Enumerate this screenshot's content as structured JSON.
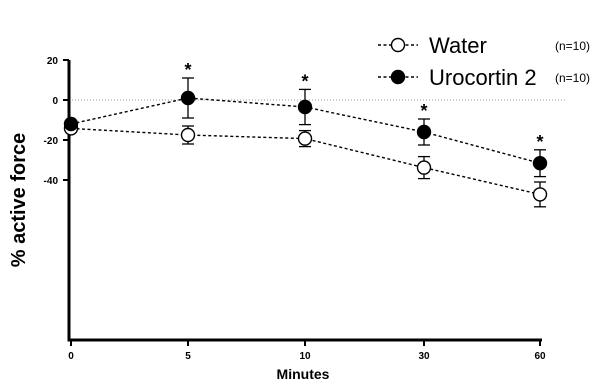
{
  "chart_data": {
    "type": "line",
    "title": "",
    "xlabel": "Minutes",
    "ylabel": "% active force",
    "categories": [
      "0",
      "5",
      "10",
      "30",
      "60"
    ],
    "ylim": [
      -50,
      20
    ],
    "yticks": [
      20,
      0,
      -20,
      -40
    ],
    "ytick_labels": [
      "20",
      "0",
      "-20",
      "-40"
    ],
    "zero_reference_line": true,
    "grid": false,
    "legend_position": "top-right",
    "series": [
      {
        "name": "Water",
        "n_label": "(n=10)",
        "marker": "open-circle",
        "line_style": "dashed",
        "color": "#000000",
        "values": [
          -14.2,
          -17.5,
          -19.3,
          -33.8,
          -47.2
        ],
        "error": [
          1.5,
          4.5,
          4.0,
          5.5,
          6.2
        ]
      },
      {
        "name": "Urocortin 2",
        "n_label": "(n=10)",
        "marker": "filled-circle",
        "line_style": "dashed",
        "color": "#000000",
        "values": [
          -12.0,
          1.0,
          -3.5,
          -16.0,
          -31.6
        ],
        "error": [
          1.5,
          10.0,
          8.8,
          6.5,
          6.7
        ]
      }
    ],
    "annotations": [
      {
        "category": "5",
        "text": "*"
      },
      {
        "category": "10",
        "text": "*"
      },
      {
        "category": "30",
        "text": "*"
      },
      {
        "category": "60",
        "text": "*"
      }
    ]
  }
}
